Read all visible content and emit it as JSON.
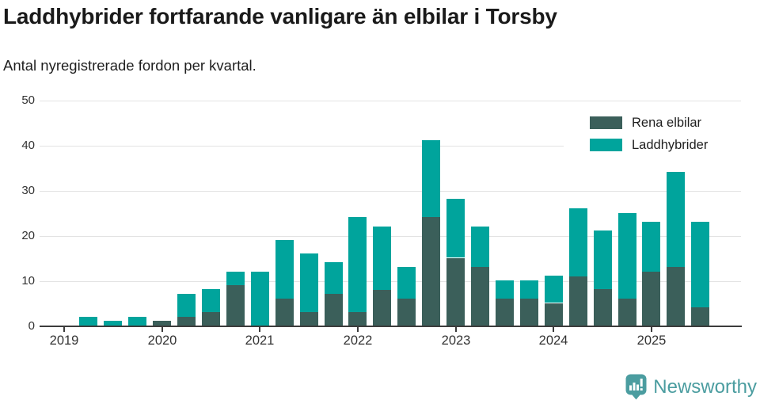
{
  "header": {
    "title": "Laddhybrider fortfarande vanligare än elbilar i Torsby",
    "subtitle": "Antal nyregistrerade fordon per kvartal."
  },
  "legend": {
    "items": [
      {
        "label": "Rena elbilar",
        "color": "#3b5f5a"
      },
      {
        "label": "Laddhybrider",
        "color": "#00a49c"
      }
    ]
  },
  "chart_data": {
    "type": "bar",
    "stacked": true,
    "title": "Laddhybrider fortfarande vanligare än elbilar i Torsby",
    "subtitle": "Antal nyregistrerade fordon per kvartal.",
    "xlabel": "",
    "ylabel": "",
    "ylim": [
      0,
      50
    ],
    "yticks": [
      0,
      10,
      20,
      30,
      40,
      50
    ],
    "grid": true,
    "legend_position": "top-right",
    "x_tick_labels": [
      "2019",
      "2020",
      "2021",
      "2022",
      "2023",
      "2024",
      "2025"
    ],
    "categories": [
      "2019-Q2",
      "2019-Q3",
      "2019-Q4",
      "2020-Q1",
      "2020-Q2",
      "2020-Q3",
      "2020-Q4",
      "2021-Q1",
      "2021-Q2",
      "2021-Q3",
      "2021-Q4",
      "2022-Q1",
      "2022-Q2",
      "2022-Q3",
      "2022-Q4",
      "2023-Q1",
      "2023-Q2",
      "2023-Q3",
      "2023-Q4",
      "2024-Q1",
      "2024-Q2",
      "2024-Q3",
      "2024-Q4",
      "2025-Q1",
      "2025-Q2",
      "2025-Q3"
    ],
    "series": [
      {
        "name": "Rena elbilar",
        "color": "#3b5f5a",
        "values": [
          0,
          0,
          0,
          1,
          2,
          3,
          9,
          0,
          6,
          3,
          7,
          3,
          8,
          6,
          24,
          15,
          13,
          6,
          6,
          5,
          11,
          8,
          6,
          12,
          13,
          4
        ]
      },
      {
        "name": "Laddhybrider",
        "color": "#00a49c",
        "values": [
          2,
          1,
          2,
          0,
          5,
          5,
          3,
          12,
          13,
          13,
          7,
          21,
          14,
          7,
          17,
          13,
          9,
          4,
          4,
          6,
          15,
          13,
          19,
          11,
          21,
          19
        ]
      }
    ]
  },
  "branding": {
    "logo_text": "Newsworthy",
    "logo_icon": "newsworthy-speech-bubble-chart-icon",
    "brand_color": "#4b9da0"
  }
}
